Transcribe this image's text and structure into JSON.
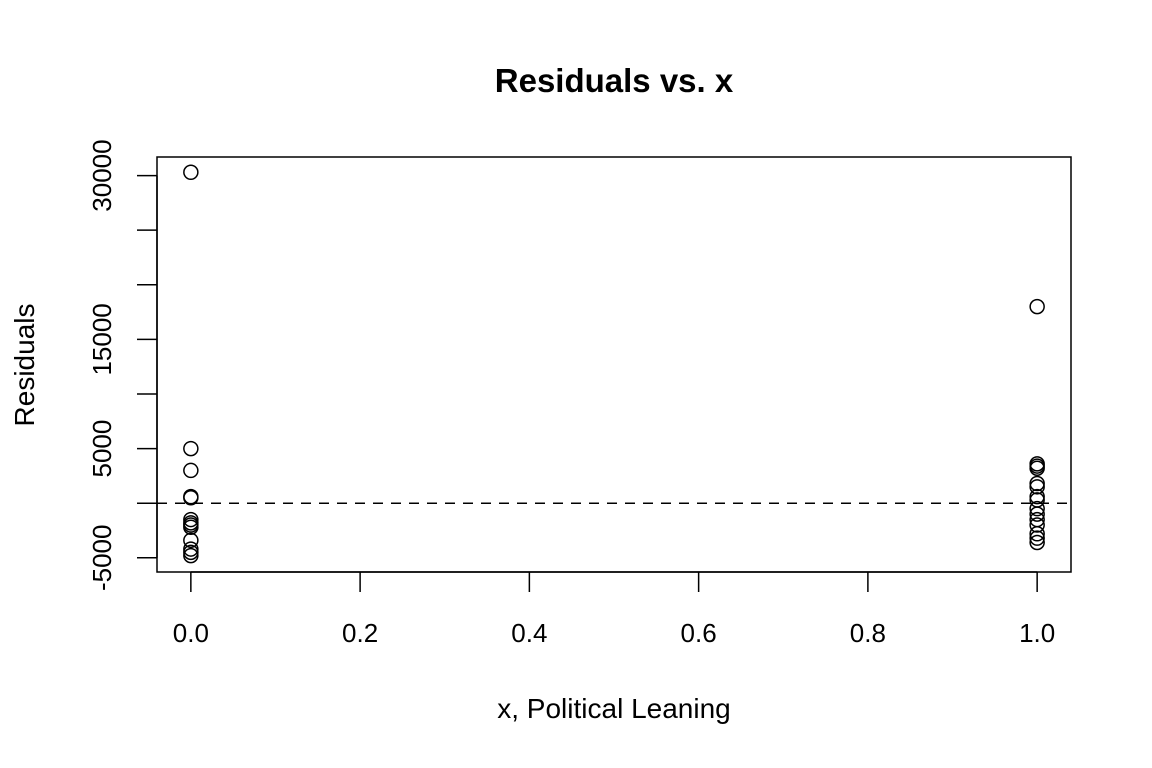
{
  "chart_data": {
    "type": "scatter",
    "title": "Residuals vs. x",
    "xlabel": "x, Political Leaning",
    "ylabel": "Residuals",
    "xlim": [
      -0.04,
      1.04
    ],
    "ylim": [
      -6300,
      31700
    ],
    "x_ticks": [
      0.0,
      0.2,
      0.4,
      0.6,
      0.8,
      1.0
    ],
    "x_tick_labels": [
      "0.0",
      "0.2",
      "0.4",
      "0.6",
      "0.8",
      "1.0"
    ],
    "y_ticks": [
      -5000,
      0,
      5000,
      10000,
      15000,
      20000,
      25000,
      30000
    ],
    "y_tick_labels": [
      {
        "value": -5000,
        "label": "-5000"
      },
      {
        "value": 5000,
        "label": "5000"
      },
      {
        "value": 15000,
        "label": "15000"
      },
      {
        "value": 30000,
        "label": "30000"
      }
    ],
    "reference_line": {
      "y": 0,
      "style": "dashed"
    },
    "grid": false,
    "points": [
      {
        "x": 0,
        "y": 30300
      },
      {
        "x": 0,
        "y": 5000
      },
      {
        "x": 0,
        "y": 3000
      },
      {
        "x": 0,
        "y": 600
      },
      {
        "x": 0,
        "y": 500
      },
      {
        "x": 0,
        "y": -1500
      },
      {
        "x": 0,
        "y": -1800
      },
      {
        "x": 0,
        "y": -2000
      },
      {
        "x": 0,
        "y": -2200
      },
      {
        "x": 0,
        "y": -3400
      },
      {
        "x": 0,
        "y": -4200
      },
      {
        "x": 0,
        "y": -4500
      },
      {
        "x": 0,
        "y": -4800
      },
      {
        "x": 1,
        "y": 18000
      },
      {
        "x": 1,
        "y": 3600
      },
      {
        "x": 1,
        "y": 3400
      },
      {
        "x": 1,
        "y": 3200
      },
      {
        "x": 1,
        "y": 1800
      },
      {
        "x": 1,
        "y": 1500
      },
      {
        "x": 1,
        "y": 600
      },
      {
        "x": 1,
        "y": 300
      },
      {
        "x": 1,
        "y": -500
      },
      {
        "x": 1,
        "y": -1000
      },
      {
        "x": 1,
        "y": -1500
      },
      {
        "x": 1,
        "y": -2000
      },
      {
        "x": 1,
        "y": -2800
      },
      {
        "x": 1,
        "y": -3200
      },
      {
        "x": 1,
        "y": -3600
      }
    ]
  }
}
